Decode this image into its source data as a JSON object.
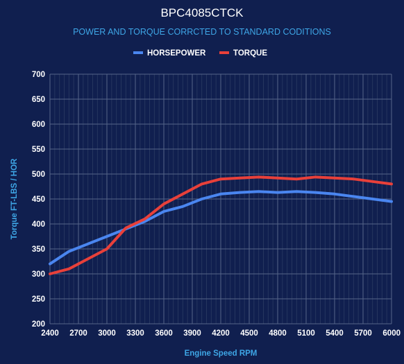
{
  "chart_data": {
    "type": "line",
    "title": "BPC4085CTCK",
    "subtitle": "POWER AND TORQUE CORRCTED TO STANDARD CODITIONS",
    "xlabel": "Engine Speed RPM",
    "ylabel": "Torque FT-LBS / HOR",
    "x": [
      2400,
      2600,
      2800,
      3000,
      3200,
      3400,
      3600,
      3800,
      4000,
      4200,
      4400,
      4600,
      4800,
      5000,
      5200,
      5400,
      5600,
      5800,
      6000
    ],
    "x_ticks": [
      "2400",
      "2700",
      "3000",
      "3300",
      "3600",
      "3900",
      "4200",
      "4500",
      "4800",
      "5100",
      "5400",
      "5700",
      "6000"
    ],
    "xlim": [
      2400,
      6000
    ],
    "ylim": [
      200,
      700
    ],
    "y_ticks": [
      "200",
      "250",
      "300",
      "350",
      "400",
      "450",
      "500",
      "550",
      "600",
      "650",
      "700"
    ],
    "grid": true,
    "legend_position": "top-center",
    "series": [
      {
        "name": "HORSEPOWER",
        "color": "#4a86f0",
        "values": [
          320,
          345,
          360,
          375,
          390,
          405,
          425,
          435,
          450,
          460,
          463,
          465,
          463,
          465,
          463,
          460,
          455,
          450,
          445
        ]
      },
      {
        "name": "TORQUE",
        "color": "#e8403a",
        "values": [
          300,
          310,
          330,
          350,
          392,
          410,
          440,
          460,
          480,
          490,
          492,
          494,
          492,
          490,
          494,
          492,
          490,
          485,
          480
        ]
      }
    ]
  }
}
